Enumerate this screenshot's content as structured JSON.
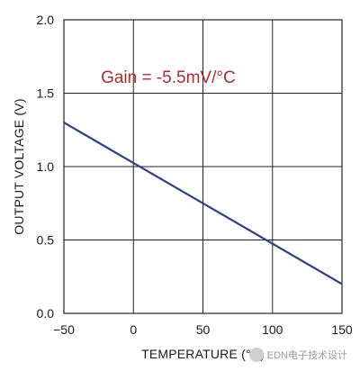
{
  "chart_data": {
    "type": "line",
    "title": "",
    "xlabel": "TEMPERATURE (°C)",
    "ylabel": "OUTPUT VOLTAGE (V)",
    "xlim": [
      -50,
      150
    ],
    "ylim": [
      0.0,
      2.0
    ],
    "x_ticks": [
      "−50",
      "0",
      "50",
      "100",
      "150"
    ],
    "x_tick_values": [
      -50,
      0,
      50,
      100,
      150
    ],
    "y_ticks": [
      "0.0",
      "0.5",
      "1.0",
      "1.5",
      "2.0"
    ],
    "y_tick_values": [
      0.0,
      0.5,
      1.0,
      1.5,
      2.0
    ],
    "grid": true,
    "series": [
      {
        "x": [
          -50,
          150
        ],
        "y": [
          1.3,
          0.2
        ]
      }
    ],
    "annotations": [
      {
        "text": "Gain = -5.5mV/°C",
        "x": 25,
        "y": 1.57,
        "color": "#b5292b"
      }
    ]
  },
  "watermark": {
    "text": "EDN电子技术设计"
  }
}
